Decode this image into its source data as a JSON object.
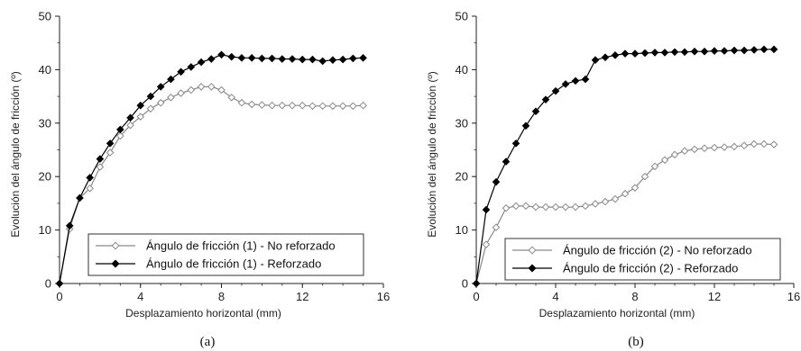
{
  "chart_data": [
    {
      "type": "line",
      "caption": "(a)",
      "xlabel": "Desplazamiento horizontal (mm)",
      "ylabel": "Evolución del ángulo de fricción (º)",
      "xlim": [
        0,
        16
      ],
      "ylim": [
        0,
        50
      ],
      "xticks": [
        "0",
        "4",
        "8",
        "12",
        "16"
      ],
      "yticks": [
        "0",
        "10",
        "20",
        "30",
        "40",
        "50"
      ],
      "grid": false,
      "legend_position": "bottom-right",
      "series": [
        {
          "name": "Ángulo de fricción (1) - No reforzado",
          "marker": "open-diamond",
          "color": "#8a8a8a",
          "x": [
            0,
            0.5,
            1,
            1.5,
            2,
            2.5,
            3,
            3.5,
            4,
            4.5,
            5,
            5.5,
            6,
            6.5,
            7,
            7.5,
            8,
            8.5,
            9,
            9.5,
            10,
            10.5,
            11,
            11.5,
            12,
            12.5,
            13,
            13.5,
            14,
            14.5,
            15
          ],
          "y": [
            0,
            10.2,
            16,
            17.8,
            21.8,
            24.5,
            27.6,
            29.6,
            31.2,
            32.7,
            33.8,
            34.8,
            35.6,
            36.2,
            36.8,
            36.8,
            36.2,
            34.8,
            33.8,
            33.5,
            33.4,
            33.3,
            33.3,
            33.3,
            33.3,
            33.2,
            33.2,
            33.2,
            33.2,
            33.2,
            33.3
          ]
        },
        {
          "name": "Ángulo de fricción (1) - Reforzado",
          "marker": "filled-diamond",
          "color": "#000000",
          "x": [
            0,
            0.5,
            1,
            1.5,
            2,
            2.5,
            3,
            3.5,
            4,
            4.5,
            5,
            5.5,
            6,
            6.5,
            7,
            7.5,
            8,
            8.5,
            9,
            9.5,
            10,
            10.5,
            11,
            11.5,
            12,
            12.5,
            13,
            13.5,
            14,
            14.5,
            15
          ],
          "y": [
            0,
            10.8,
            16,
            19.8,
            23.3,
            26.2,
            28.8,
            31,
            33.3,
            35,
            36.8,
            38.2,
            39.6,
            40.5,
            41.4,
            42,
            42.8,
            42.4,
            42.2,
            42.2,
            42.1,
            42.1,
            42,
            42,
            41.9,
            41.9,
            41.6,
            41.8,
            41.9,
            42.1,
            42.2
          ]
        }
      ]
    },
    {
      "type": "line",
      "caption": "(b)",
      "xlabel": "Desplazamiento horizontal (mm)",
      "ylabel": "Evolución del ángulo de fricción (º)",
      "xlim": [
        0,
        16
      ],
      "ylim": [
        0,
        50
      ],
      "xticks": [
        "0",
        "4",
        "8",
        "12",
        "16"
      ],
      "yticks": [
        "0",
        "10",
        "20",
        "30",
        "40",
        "50"
      ],
      "grid": false,
      "legend_position": "bottom-right",
      "series": [
        {
          "name": "Ángulo de fricción (2) -  No reforzado",
          "marker": "open-diamond",
          "color": "#8a8a8a",
          "x": [
            0,
            0.5,
            1,
            1.5,
            2,
            2.5,
            3,
            3.5,
            4,
            4.5,
            5,
            5.5,
            6,
            6.5,
            7,
            7.5,
            8,
            8.5,
            9,
            9.5,
            10,
            10.5,
            11,
            11.5,
            12,
            12.5,
            13,
            13.5,
            14,
            14.5,
            15
          ],
          "y": [
            0,
            7.3,
            10.5,
            14.1,
            14.5,
            14.5,
            14.3,
            14.3,
            14.3,
            14.3,
            14.3,
            14.5,
            14.9,
            15.3,
            15.8,
            16.8,
            17.9,
            20,
            21.9,
            23.1,
            24.1,
            24.8,
            25.1,
            25.3,
            25.4,
            25.5,
            25.6,
            25.8,
            26.1,
            26.1,
            26
          ]
        },
        {
          "name": "Ángulo de fricción (2) - Reforzado",
          "marker": "filled-diamond",
          "color": "#000000",
          "x": [
            0,
            0.5,
            1,
            1.5,
            2,
            2.5,
            3,
            3.5,
            4,
            4.5,
            5,
            5.5,
            6,
            6.5,
            7,
            7.5,
            8,
            8.5,
            9,
            9.5,
            10,
            10.5,
            11,
            11.5,
            12,
            12.5,
            13,
            13.5,
            14,
            14.5,
            15
          ],
          "y": [
            0,
            13.8,
            19,
            22.8,
            26.2,
            29.5,
            32.2,
            34.4,
            36,
            37.3,
            37.9,
            38.2,
            41.8,
            42.3,
            42.7,
            43,
            43,
            43.1,
            43.2,
            43.2,
            43.3,
            43.3,
            43.4,
            43.4,
            43.5,
            43.5,
            43.6,
            43.6,
            43.7,
            43.8,
            43.8
          ]
        }
      ]
    }
  ]
}
